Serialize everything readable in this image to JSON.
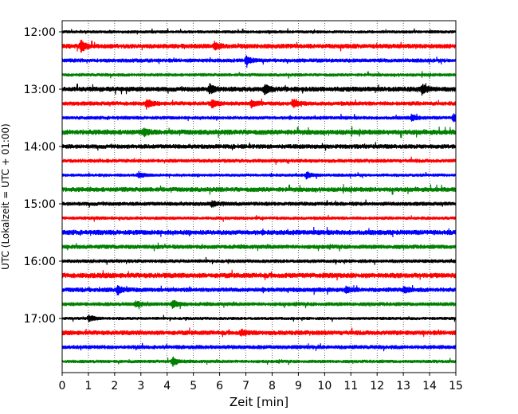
{
  "chart_data": {
    "type": "line",
    "title": "",
    "xlabel": "Zeit  [min]",
    "ylabel": "UTC (Lokalzeit = UTC + 01:00)",
    "xlim": [
      0,
      15
    ],
    "x_ticks": [
      0,
      1,
      2,
      3,
      4,
      5,
      6,
      7,
      8,
      9,
      10,
      11,
      12,
      13,
      14,
      15
    ],
    "y_tick_labels": [
      "12:00",
      "13:00",
      "14:00",
      "15:00",
      "16:00",
      "17:00"
    ],
    "grid": "vertical dotted lines at each minute",
    "legend": "none",
    "trace_colors": [
      "#000000",
      "#ff0000",
      "#0000ff",
      "#008000"
    ],
    "traces_start": [
      "12:00",
      "12:15",
      "12:30",
      "12:45",
      "13:00",
      "13:15",
      "13:30",
      "13:45",
      "14:00",
      "14:15",
      "14:30",
      "14:45",
      "15:00",
      "15:15",
      "15:30",
      "15:45",
      "16:00",
      "16:15",
      "16:30",
      "16:45",
      "17:00",
      "17:15",
      "17:30",
      "17:45"
    ],
    "events": [
      {
        "trace": 1,
        "t": 0.7,
        "amp": 1.0
      },
      {
        "trace": 1,
        "t": 5.8,
        "amp": 0.7
      },
      {
        "trace": 2,
        "t": 7.0,
        "amp": 1.0
      },
      {
        "trace": 4,
        "t": 5.6,
        "amp": 0.9
      },
      {
        "trace": 4,
        "t": 7.7,
        "amp": 0.9
      },
      {
        "trace": 4,
        "t": 13.7,
        "amp": 0.9
      },
      {
        "trace": 5,
        "t": 3.2,
        "amp": 0.8
      },
      {
        "trace": 5,
        "t": 5.7,
        "amp": 0.7
      },
      {
        "trace": 5,
        "t": 7.2,
        "amp": 0.6
      },
      {
        "trace": 5,
        "t": 8.8,
        "amp": 0.7
      },
      {
        "trace": 6,
        "t": 13.3,
        "amp": 0.6
      },
      {
        "trace": 6,
        "t": 14.9,
        "amp": 0.7
      },
      {
        "trace": 7,
        "t": 3.1,
        "amp": 0.6
      },
      {
        "trace": 10,
        "t": 2.9,
        "amp": 0.6
      },
      {
        "trace": 10,
        "t": 9.3,
        "amp": 0.6
      },
      {
        "trace": 12,
        "t": 5.7,
        "amp": 0.6
      },
      {
        "trace": 18,
        "t": 2.1,
        "amp": 0.8
      },
      {
        "trace": 18,
        "t": 10.8,
        "amp": 0.6
      },
      {
        "trace": 18,
        "t": 13.0,
        "amp": 0.5
      },
      {
        "trace": 19,
        "t": 2.8,
        "amp": 0.6
      },
      {
        "trace": 19,
        "t": 4.2,
        "amp": 0.7
      },
      {
        "trace": 20,
        "t": 1.0,
        "amp": 0.7
      },
      {
        "trace": 21,
        "t": 6.8,
        "amp": 0.5
      },
      {
        "trace": 23,
        "t": 4.2,
        "amp": 0.8
      }
    ]
  }
}
